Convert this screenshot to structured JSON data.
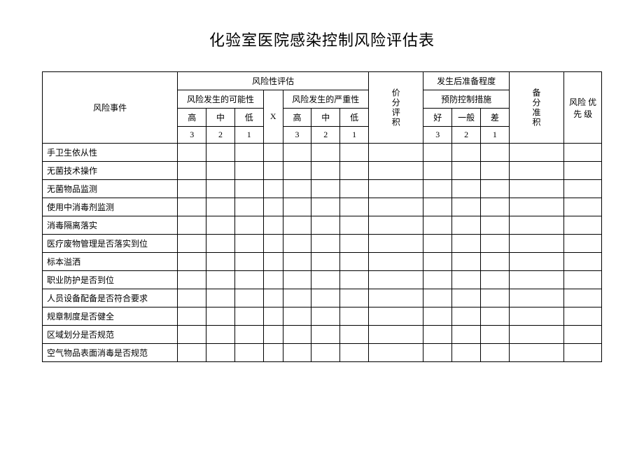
{
  "title": "化验室医院感染控制风险评估表",
  "headers": {
    "event": "风险事件",
    "risk_assessment": "风险性评估",
    "likelihood": "风险发生的可能性",
    "severity": "风险发生的严重性",
    "x": "X",
    "score": "价分评积",
    "preparedness": "发生后准备程度",
    "prevention": "预防控制措施",
    "backup": "备分准积",
    "priority": "风险 优 先  级",
    "high": "高",
    "mid": "中",
    "low": "低",
    "good": "好",
    "normal": "一般",
    "poor": "差",
    "n3": "3",
    "n2": "2",
    "n1": "1"
  },
  "rows": [
    "手卫生依从性",
    "无菌技术操作",
    "无菌物品监测",
    "使用中消毒剂监测",
    "消毒隔离落实",
    "医疗废物管理是否落实到位",
    "标本溢洒",
    "职业防护是否到位",
    "人员设备配备是否符合要求",
    "规章制度是否健全",
    "区域划分是否规范",
    "空气物品表面消毒是否规范"
  ],
  "style": {
    "background_color": "#ffffff",
    "border_color": "#000000",
    "title_fontsize": 22,
    "body_fontsize": 12
  }
}
